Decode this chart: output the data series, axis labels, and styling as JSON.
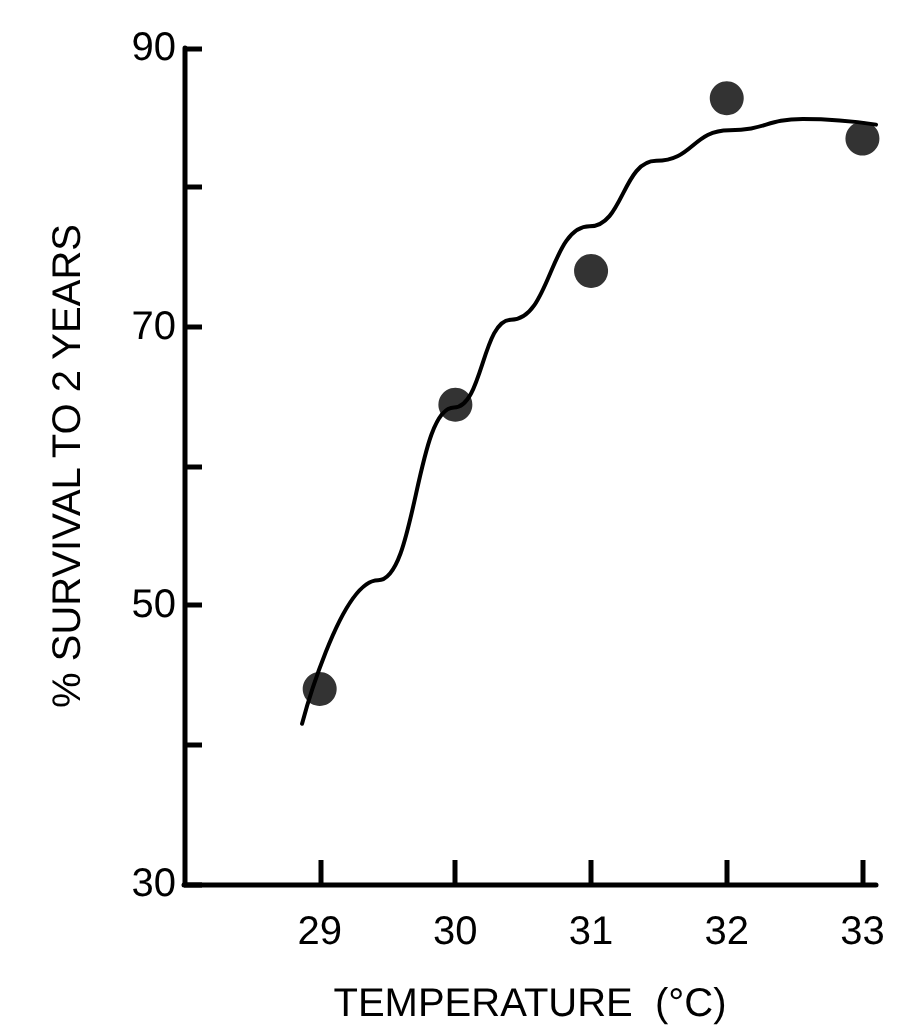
{
  "chart_data": {
    "type": "scatter",
    "xlabel": "TEMPERATURE  (°C)",
    "ylabel": "% SURVIVAL TO 2 YEARS",
    "x": [
      29,
      30,
      31,
      32,
      33
    ],
    "series": [
      {
        "color": "#000000",
        "marker": "circle",
        "values": [
          44,
          64.4,
          74,
          86.4,
          83.5
        ]
      },
      {
        "type": "line",
        "color": "#000000",
        "marker": "none",
        "line_style": "solid",
        "x": [
          28.87,
          29.43,
          29.99,
          30.41,
          30.99,
          31.48,
          32.02,
          32.56,
          33.1
        ],
        "values": [
          41.5,
          51.8,
          64.2,
          70.5,
          77.2,
          81.9,
          84.1,
          84.9,
          84.5
        ]
      }
    ],
    "xlim": [
      28,
      33.1
    ],
    "xticks": [
      29,
      30,
      31,
      32,
      33
    ],
    "ylim": [
      30,
      90
    ],
    "yticks": [
      30,
      {
        "value": 40,
        "label": null
      },
      50,
      {
        "value": 60,
        "label": null
      },
      70,
      {
        "value": 80,
        "label": null
      },
      90
    ],
    "grid": false
  }
}
